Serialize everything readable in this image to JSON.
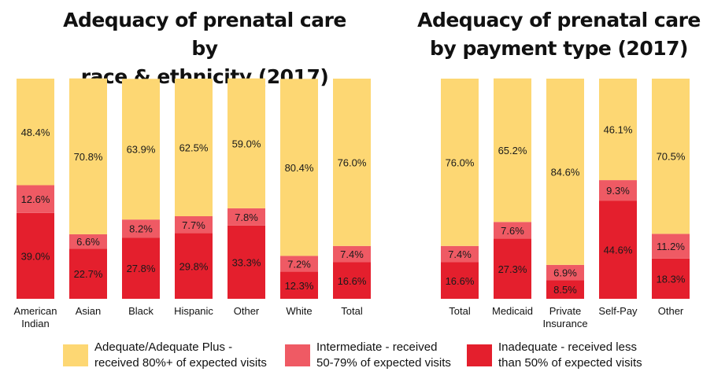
{
  "colors": {
    "adequate": "#fdd773",
    "intermediate": "#ef5a64",
    "inadequate": "#e41f2d"
  },
  "legend": [
    {
      "key": "adequate",
      "line1": "Adequate/Adequate Plus -",
      "line2": "received 80%+ of expected visits"
    },
    {
      "key": "intermediate",
      "line1": "Intermediate - received",
      "line2": "50-79% of expected visits"
    },
    {
      "key": "inadequate",
      "line1": "Inadequate - received less",
      "line2": "than 50% of expected visits"
    }
  ],
  "chart_data": [
    {
      "type": "bar",
      "stacked": true,
      "title_line1": "Adequacy of prenatal care by",
      "title_line2": "race & ethnicity (2017)",
      "categories": [
        [
          "American",
          "Indian"
        ],
        [
          "Asian"
        ],
        [
          "Black"
        ],
        [
          "Hispanic"
        ],
        [
          "Other"
        ],
        [
          "White"
        ],
        [
          "Total"
        ]
      ],
      "series": [
        {
          "key": "inadequate",
          "name": "Inadequate - received less than 50% of expected visits",
          "values": [
            39.0,
            22.7,
            27.8,
            29.8,
            33.3,
            12.3,
            16.6
          ],
          "labels": [
            "39.0%",
            "22.7%",
            "27.8%",
            "29.8%",
            "33.3%",
            "12.3%",
            "16.6%"
          ]
        },
        {
          "key": "intermediate",
          "name": "Intermediate - received 50-79% of expected visits",
          "values": [
            12.6,
            6.6,
            8.2,
            7.7,
            7.8,
            7.2,
            7.4
          ],
          "labels": [
            "12.6%",
            "6.6%",
            "8.2%",
            "7.7%",
            "7.8%",
            "7.2%",
            "7.4%"
          ]
        },
        {
          "key": "adequate",
          "name": "Adequate/Adequate Plus - received 80%+ of expected visits",
          "values": [
            48.4,
            70.8,
            63.9,
            62.5,
            59.0,
            80.4,
            76.0
          ],
          "labels": [
            "48.4%",
            "70.8%",
            "63.9%",
            "62.5%",
            "59.0%",
            "80.4%",
            "76.0%"
          ]
        }
      ],
      "ylim": [
        0,
        100
      ]
    },
    {
      "type": "bar",
      "stacked": true,
      "title_line1": "Adequacy of prenatal care",
      "title_line2": "by payment type (2017)",
      "categories": [
        [
          "Total"
        ],
        [
          "Medicaid"
        ],
        [
          "Private",
          "Insurance"
        ],
        [
          "Self-Pay"
        ],
        [
          "Other"
        ]
      ],
      "series": [
        {
          "key": "inadequate",
          "name": "Inadequate - received less than 50% of expected visits",
          "values": [
            16.6,
            27.3,
            8.5,
            44.6,
            18.3
          ],
          "labels": [
            "16.6%",
            "27.3%",
            "8.5%",
            "44.6%",
            "18.3%"
          ]
        },
        {
          "key": "intermediate",
          "name": "Intermediate - received 50-79% of expected visits",
          "values": [
            7.4,
            7.6,
            6.9,
            9.3,
            11.2
          ],
          "labels": [
            "7.4%",
            "7.6%",
            "6.9%",
            "9.3%",
            "11.2%"
          ]
        },
        {
          "key": "adequate",
          "name": "Adequate/Adequate Plus - received 80%+ of expected visits",
          "values": [
            76.0,
            65.2,
            84.6,
            46.1,
            70.5
          ],
          "labels": [
            "76.0%",
            "65.2%",
            "84.6%",
            "46.1%",
            "70.5%"
          ]
        }
      ],
      "ylim": [
        0,
        100
      ]
    }
  ]
}
